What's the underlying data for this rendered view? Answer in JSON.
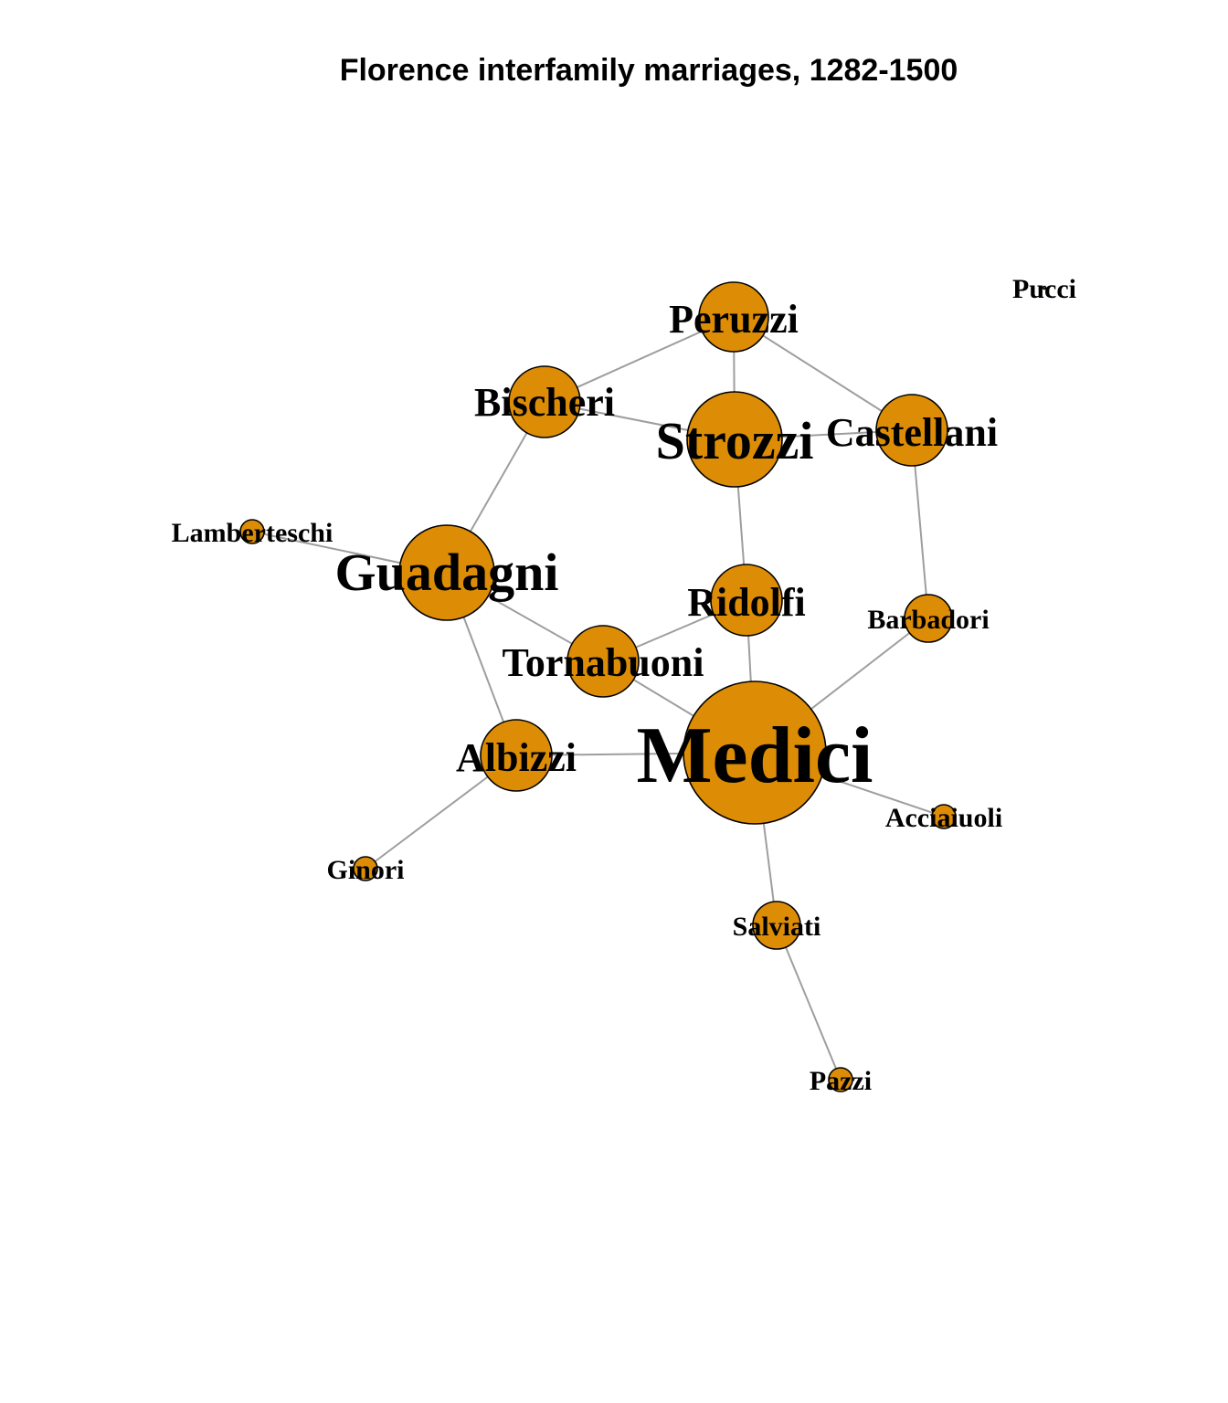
{
  "title": "Florence interfamily marriages, 1282-1500",
  "node_color": "#dd8d05",
  "edge_color": "#9e9e9e",
  "nodes": [
    {
      "id": "Medici",
      "label": "Medici"
    },
    {
      "id": "Guadagni",
      "label": "Guadagni"
    },
    {
      "id": "Strozzi",
      "label": "Strozzi"
    },
    {
      "id": "Peruzzi",
      "label": "Peruzzi"
    },
    {
      "id": "Bischeri",
      "label": "Bischeri"
    },
    {
      "id": "Castellani",
      "label": "Castellani"
    },
    {
      "id": "Ridolfi",
      "label": "Ridolfi"
    },
    {
      "id": "Tornabuoni",
      "label": "Tornabuoni"
    },
    {
      "id": "Albizzi",
      "label": "Albizzi"
    },
    {
      "id": "Barbadori",
      "label": "Barbadori"
    },
    {
      "id": "Salviati",
      "label": "Salviati"
    },
    {
      "id": "Lamberteschi",
      "label": "Lamberteschi"
    },
    {
      "id": "Acciaiuoli",
      "label": "Acciaiuoli"
    },
    {
      "id": "Ginori",
      "label": "Ginori"
    },
    {
      "id": "Pazzi",
      "label": "Pazzi"
    },
    {
      "id": "Pucci",
      "label": "Pucci"
    }
  ],
  "edges": [
    [
      "Peruzzi",
      "Bischeri"
    ],
    [
      "Peruzzi",
      "Strozzi"
    ],
    [
      "Peruzzi",
      "Castellani"
    ],
    [
      "Bischeri",
      "Strozzi"
    ],
    [
      "Bischeri",
      "Guadagni"
    ],
    [
      "Strozzi",
      "Castellani"
    ],
    [
      "Strozzi",
      "Ridolfi"
    ],
    [
      "Castellani",
      "Barbadori"
    ],
    [
      "Guadagni",
      "Lamberteschi"
    ],
    [
      "Guadagni",
      "Tornabuoni"
    ],
    [
      "Guadagni",
      "Albizzi"
    ],
    [
      "Ridolfi",
      "Tornabuoni"
    ],
    [
      "Ridolfi",
      "Medici"
    ],
    [
      "Tornabuoni",
      "Medici"
    ],
    [
      "Albizzi",
      "Medici"
    ],
    [
      "Albizzi",
      "Ginori"
    ],
    [
      "Barbadori",
      "Medici"
    ],
    [
      "Medici",
      "Acciaiuoli"
    ],
    [
      "Medici",
      "Salviati"
    ],
    [
      "Salviati",
      "Pazzi"
    ]
  ]
}
